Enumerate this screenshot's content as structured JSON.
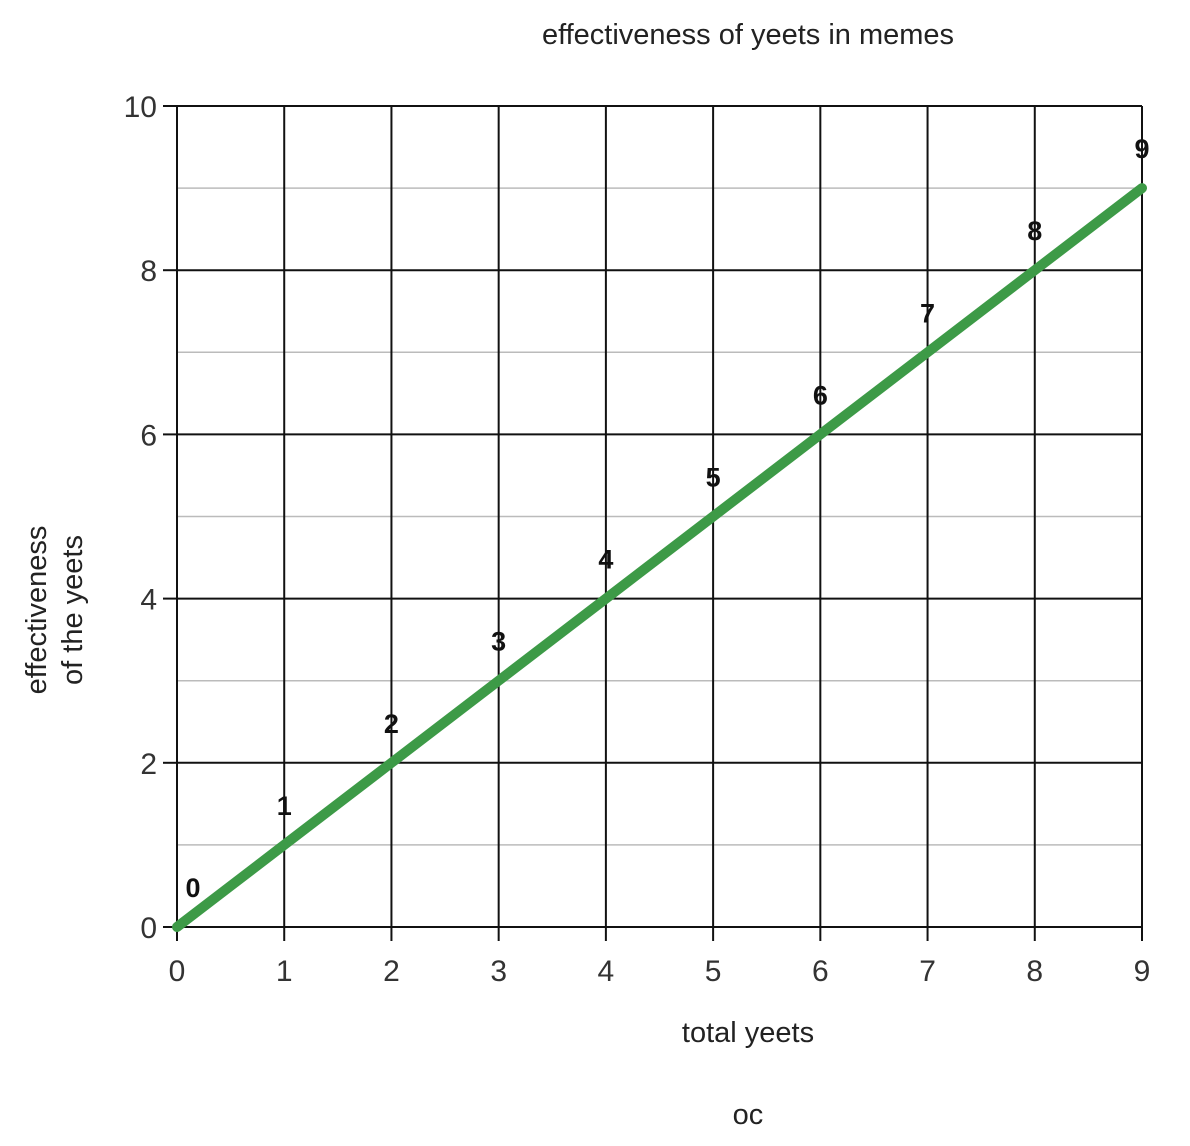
{
  "chart_data": {
    "type": "line",
    "title": "effectiveness of yeets in memes",
    "xlabel": "total yeets",
    "ylabel": [
      "effectiveness",
      "of the yeets"
    ],
    "caption": "oc",
    "x": [
      0,
      1,
      2,
      3,
      4,
      5,
      6,
      7,
      8,
      9
    ],
    "xlim": [
      0,
      9
    ],
    "ylim": [
      0,
      10
    ],
    "x_ticks": [
      "0",
      "1",
      "2",
      "3",
      "4",
      "5",
      "6",
      "7",
      "8",
      "9"
    ],
    "y_ticks": [
      "0",
      "2",
      "4",
      "6",
      "8",
      "10"
    ],
    "grid": true,
    "series": [
      {
        "values": [
          0,
          1,
          2,
          3,
          4,
          5,
          6,
          7,
          8,
          9
        ],
        "color": "#3d9a47",
        "point_labels": [
          "0",
          "1",
          "2",
          "3",
          "4",
          "5",
          "6",
          "7",
          "8",
          "9"
        ]
      }
    ],
    "colors": {
      "line": "#3d9a47",
      "major_grid": "#111111",
      "minor_grid": "#bbbbbb"
    }
  }
}
